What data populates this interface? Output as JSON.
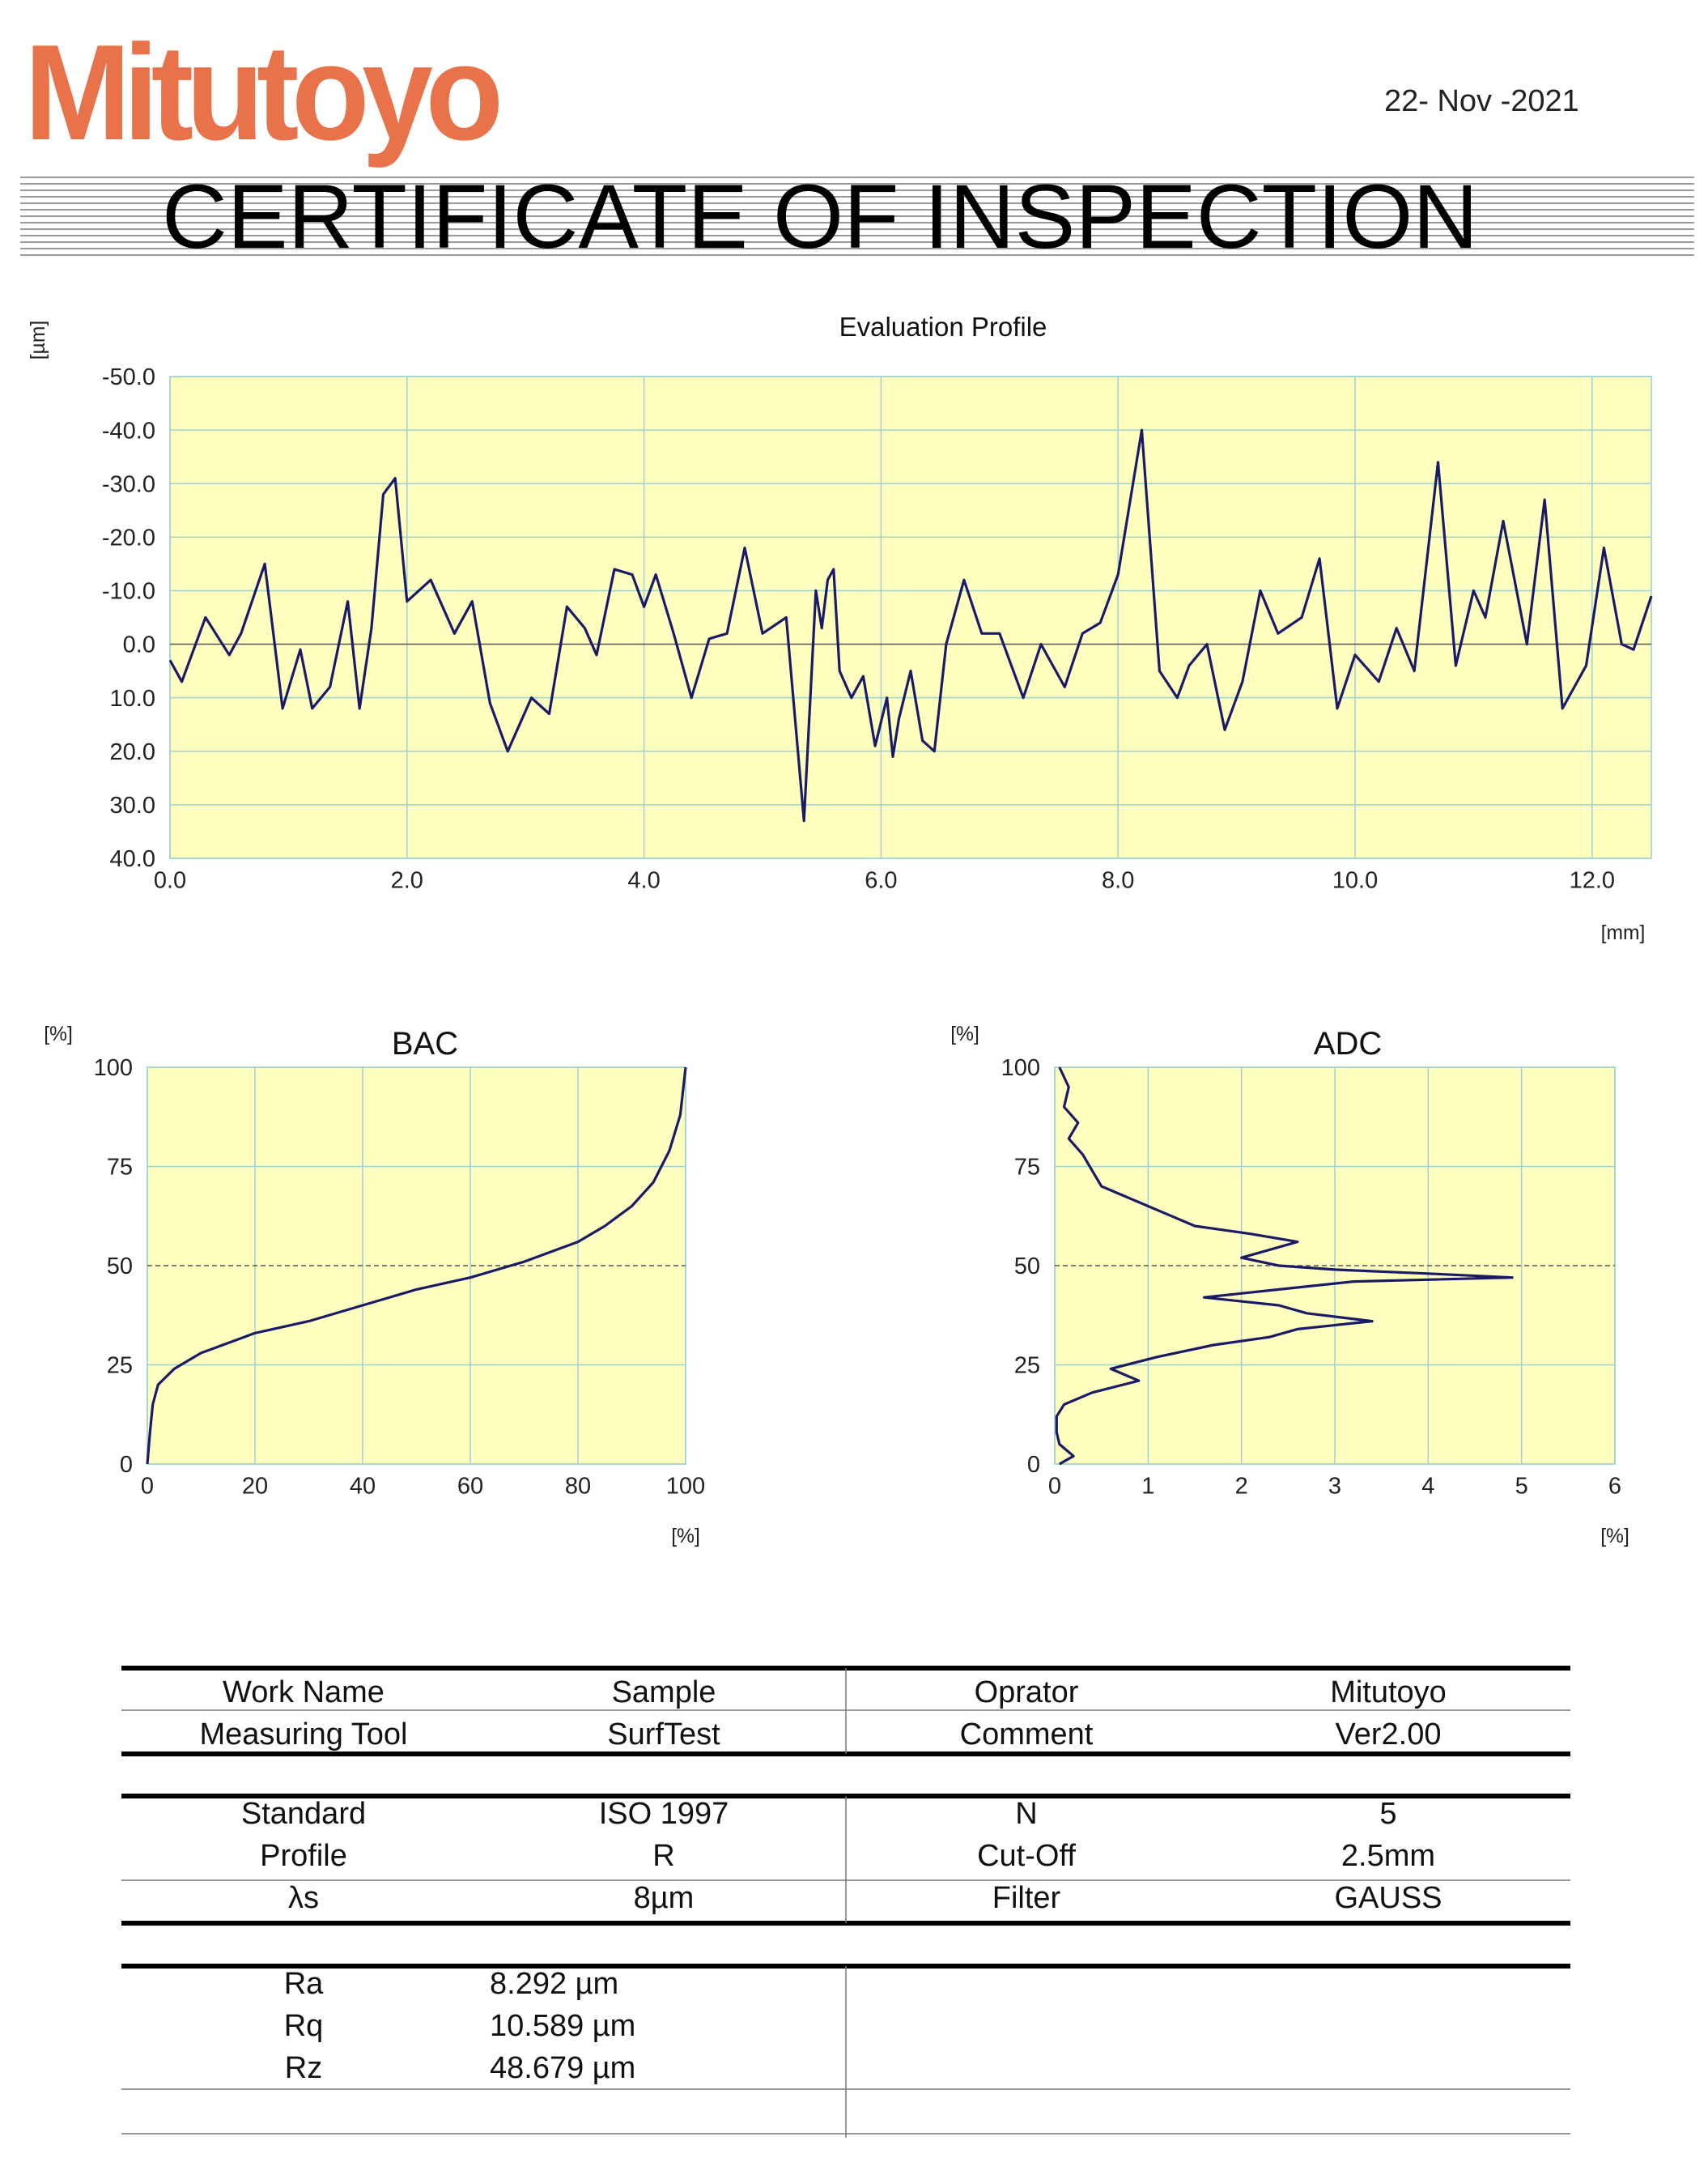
{
  "header": {
    "logo_text": "Mitutoyo",
    "date": "22- Nov -2021",
    "title": "CERTIFICATE OF INSPECTION"
  },
  "colors": {
    "brand": "#e8734a",
    "plot_bg": "#ffffc0",
    "grid": "#9ed1d1",
    "curve": "#1a1a66"
  },
  "chart_data": [
    {
      "type": "line",
      "title": "Evaluation Profile",
      "ylabel": "[µm]",
      "xlabel": "[mm]",
      "xlim": [
        0,
        12.5
      ],
      "ylim": [
        -50,
        40
      ],
      "x_ticks": [
        0,
        2,
        4,
        6,
        8,
        10,
        12
      ],
      "x_tick_labels": [
        "0.0",
        "2.0",
        "4.0",
        "6.0",
        "8.0",
        "10.0",
        "12.0"
      ],
      "y_ticks": [
        40,
        30,
        20,
        10,
        0,
        -10,
        -20,
        -30,
        -40,
        -50
      ],
      "y_tick_labels": [
        "40.0",
        "30.0",
        "20.0",
        "10.0",
        "0.0",
        "-10.0",
        "-20.0",
        "-30.0",
        "-40.0",
        "-50.0"
      ],
      "x": [
        0,
        0.1,
        0.3,
        0.5,
        0.6,
        0.8,
        0.95,
        1.1,
        1.2,
        1.35,
        1.5,
        1.6,
        1.7,
        1.8,
        1.9,
        2.0,
        2.1,
        2.2,
        2.4,
        2.55,
        2.7,
        2.85,
        3.05,
        3.2,
        3.35,
        3.5,
        3.6,
        3.75,
        3.9,
        4.0,
        4.1,
        4.25,
        4.4,
        4.55,
        4.7,
        4.85,
        5.0,
        5.2,
        5.35,
        5.45,
        5.5,
        5.55,
        5.6,
        5.65,
        5.75,
        5.85,
        5.95,
        6.05,
        6.1,
        6.15,
        6.25,
        6.35,
        6.45,
        6.55,
        6.7,
        6.85,
        7.0,
        7.2,
        7.35,
        7.55,
        7.7,
        7.85,
        8.0,
        8.2,
        8.35,
        8.5,
        8.6,
        8.75,
        8.9,
        9.05,
        9.2,
        9.35,
        9.55,
        9.7,
        9.85,
        10.0,
        10.2,
        10.35,
        10.5,
        10.7,
        10.85,
        11.0,
        11.1,
        11.25,
        11.45,
        11.6,
        11.75,
        11.95,
        12.1,
        12.25,
        12.35,
        12.5
      ],
      "y": [
        3,
        7,
        -5,
        2,
        -2,
        -15,
        12,
        1,
        12,
        8,
        -8,
        12,
        -3,
        -28,
        -31,
        -8,
        -10,
        -12,
        -2,
        -8,
        11,
        20,
        10,
        13,
        -7,
        -3,
        2,
        -14,
        -13,
        -7,
        -13,
        -2,
        10,
        -1,
        -2,
        -18,
        -2,
        -5,
        33,
        -10,
        -3,
        -12,
        -14,
        5,
        10,
        6,
        19,
        10,
        21,
        14,
        5,
        18,
        20,
        0,
        -12,
        -2,
        -2,
        10,
        0,
        8,
        -2,
        -4,
        -13,
        -40,
        5,
        10,
        4,
        0,
        16,
        7,
        -10,
        -2,
        -5,
        -16,
        12,
        2,
        7,
        -3,
        5,
        -34,
        4,
        -10,
        -5,
        -23,
        0,
        -27,
        12,
        4,
        -18,
        0,
        1,
        -9
      ]
    },
    {
      "type": "line",
      "title": "BAC",
      "ylabel": "[%]",
      "xlabel": "[%]",
      "xlim": [
        0,
        100
      ],
      "ylim": [
        100,
        0
      ],
      "x_ticks": [
        0,
        20,
        40,
        60,
        80,
        100
      ],
      "x_tick_labels": [
        "0",
        "20",
        "40",
        "60",
        "80",
        "100"
      ],
      "y_ticks": [
        0,
        25,
        50,
        75,
        100
      ],
      "y_tick_labels": [
        "0",
        "25",
        "50",
        "75",
        "100"
      ],
      "x": [
        0,
        0.5,
        1,
        2,
        5,
        10,
        20,
        30,
        40,
        50,
        60,
        70,
        80,
        85,
        90,
        94,
        97,
        99,
        100
      ],
      "y": [
        0,
        8,
        15,
        20,
        24,
        28,
        33,
        36,
        40,
        44,
        47,
        51,
        56,
        60,
        65,
        71,
        79,
        88,
        100
      ]
    },
    {
      "type": "line",
      "title": "ADC",
      "ylabel": "[%]",
      "xlabel": "[%]",
      "xlim": [
        0,
        6
      ],
      "ylim": [
        100,
        0
      ],
      "x_ticks": [
        0,
        1,
        2,
        3,
        4,
        5,
        6
      ],
      "x_tick_labels": [
        "0",
        "1",
        "2",
        "3",
        "4",
        "5",
        "6"
      ],
      "y_ticks": [
        0,
        25,
        50,
        75,
        100
      ],
      "y_tick_labels": [
        "0",
        "25",
        "50",
        "75",
        "100"
      ],
      "y": [
        0,
        2,
        5,
        8,
        12,
        15,
        18,
        21,
        24,
        27,
        30,
        32,
        34,
        36,
        38,
        40,
        42,
        44,
        46,
        47,
        48,
        49,
        50,
        52,
        54,
        56,
        58,
        60,
        63,
        66,
        70,
        74,
        78,
        82,
        86,
        90,
        95,
        100
      ],
      "x": [
        0.05,
        0.2,
        0.05,
        0.02,
        0.02,
        0.1,
        0.4,
        0.9,
        0.6,
        1.1,
        1.7,
        2.3,
        2.6,
        3.4,
        2.7,
        2.4,
        1.6,
        2.4,
        3.2,
        4.9,
        4.0,
        3.0,
        2.4,
        2.0,
        2.3,
        2.6,
        2.1,
        1.5,
        1.2,
        0.9,
        0.5,
        0.4,
        0.3,
        0.15,
        0.25,
        0.1,
        0.15,
        0.05
      ]
    }
  ],
  "table1": {
    "rows": [
      [
        "Work Name",
        "Sample",
        "Oprator",
        "Mitutoyo"
      ],
      [
        "Measuring Tool",
        "SurfTest",
        "Comment",
        "Ver2.00"
      ]
    ]
  },
  "table2": {
    "rows": [
      [
        "Standard",
        "ISO 1997",
        "N",
        "5"
      ],
      [
        "Profile",
        "R",
        "Cut-Off",
        "2.5mm"
      ],
      [
        "λs",
        "8µm",
        "Filter",
        "GAUSS"
      ]
    ]
  },
  "results": {
    "rows": [
      [
        "Ra",
        "8.292  µm"
      ],
      [
        "Rq",
        "10.589 µm"
      ],
      [
        "Rz",
        "48.679 µm"
      ]
    ]
  }
}
